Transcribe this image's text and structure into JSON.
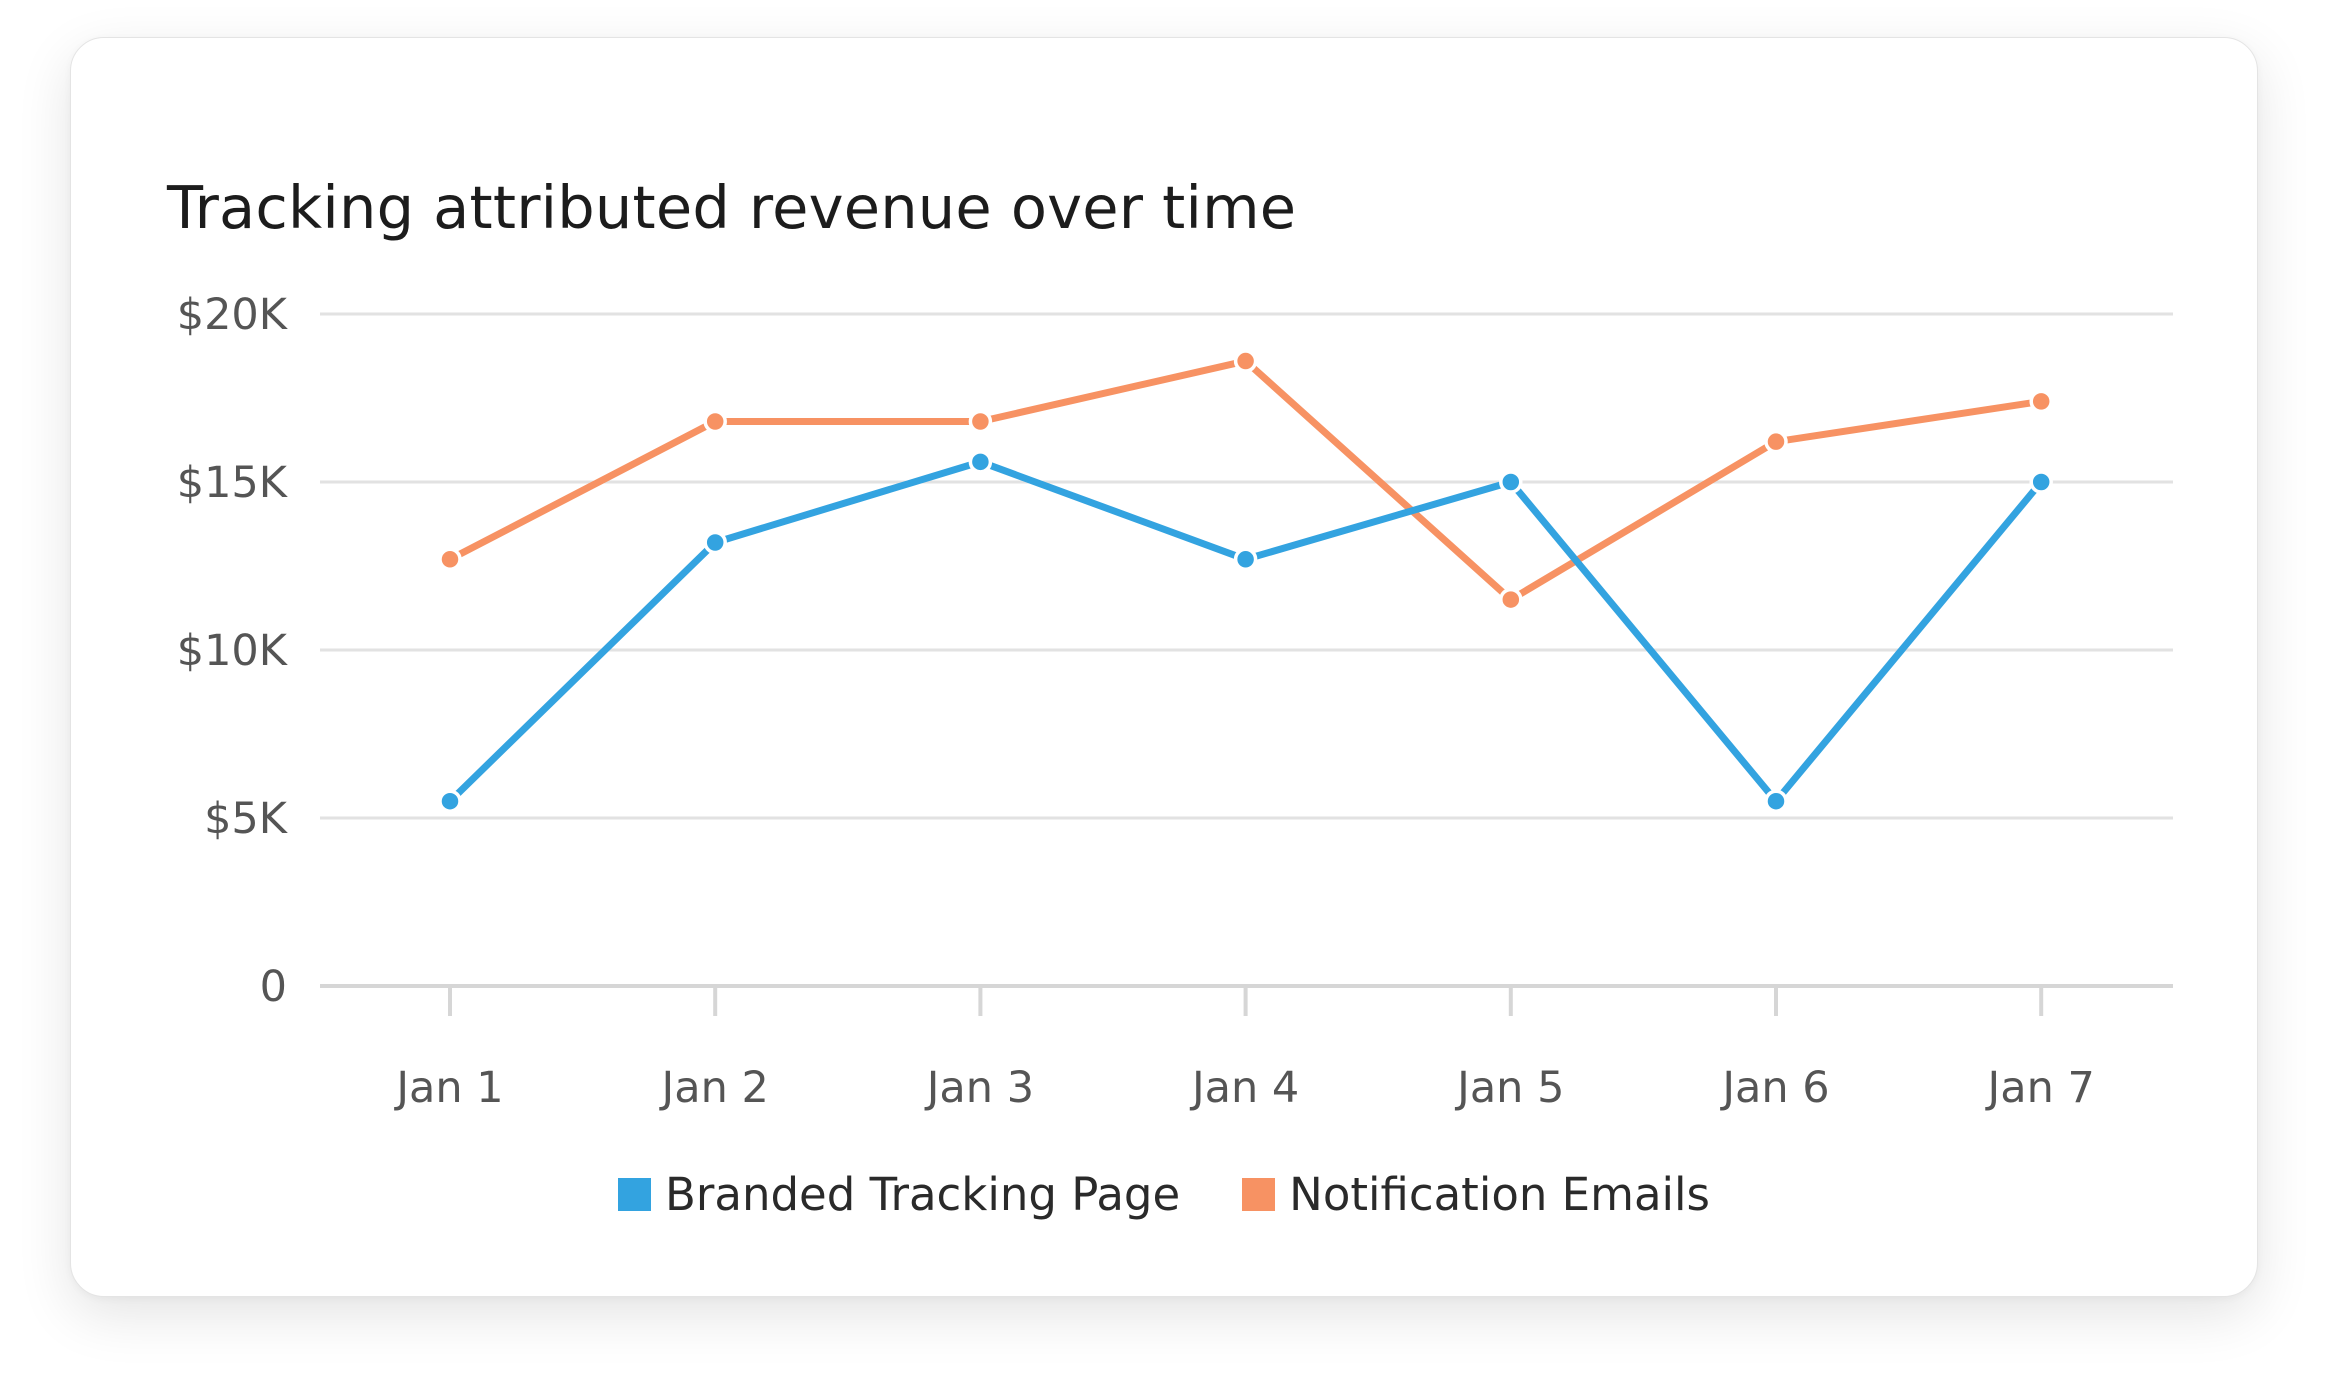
{
  "card": {
    "title": "Tracking attributed revenue over time"
  },
  "colors": {
    "branded": "#33a3e0",
    "emails": "#f79263",
    "grid": "#e2e2e2",
    "axis_line": "#d6d6d6",
    "tick_text": "#555555"
  },
  "chart_data": {
    "type": "line",
    "title": "Tracking attributed revenue over time",
    "xlabel": "",
    "ylabel": "",
    "categories": [
      "Jan 1",
      "Jan 2",
      "Jan 3",
      "Jan 4",
      "Jan 5",
      "Jan 6",
      "Jan 7"
    ],
    "y_ticks": [
      {
        "value": 0,
        "label": "0"
      },
      {
        "value": 5000,
        "label": "$5K"
      },
      {
        "value": 10000,
        "label": "$10K"
      },
      {
        "value": 15000,
        "label": "$15K"
      },
      {
        "value": 20000,
        "label": "$20K"
      }
    ],
    "ylim": [
      0,
      20000
    ],
    "grid": true,
    "legend_position": "bottom-center",
    "series": [
      {
        "name": "Branded Tracking Page",
        "color": "#33a3e0",
        "values": [
          5500,
          13200,
          15600,
          12700,
          15000,
          5500,
          15000
        ]
      },
      {
        "name": "Notification Emails",
        "color": "#f79263",
        "values": [
          12700,
          16800,
          16800,
          18600,
          11500,
          16200,
          17400
        ]
      }
    ]
  }
}
